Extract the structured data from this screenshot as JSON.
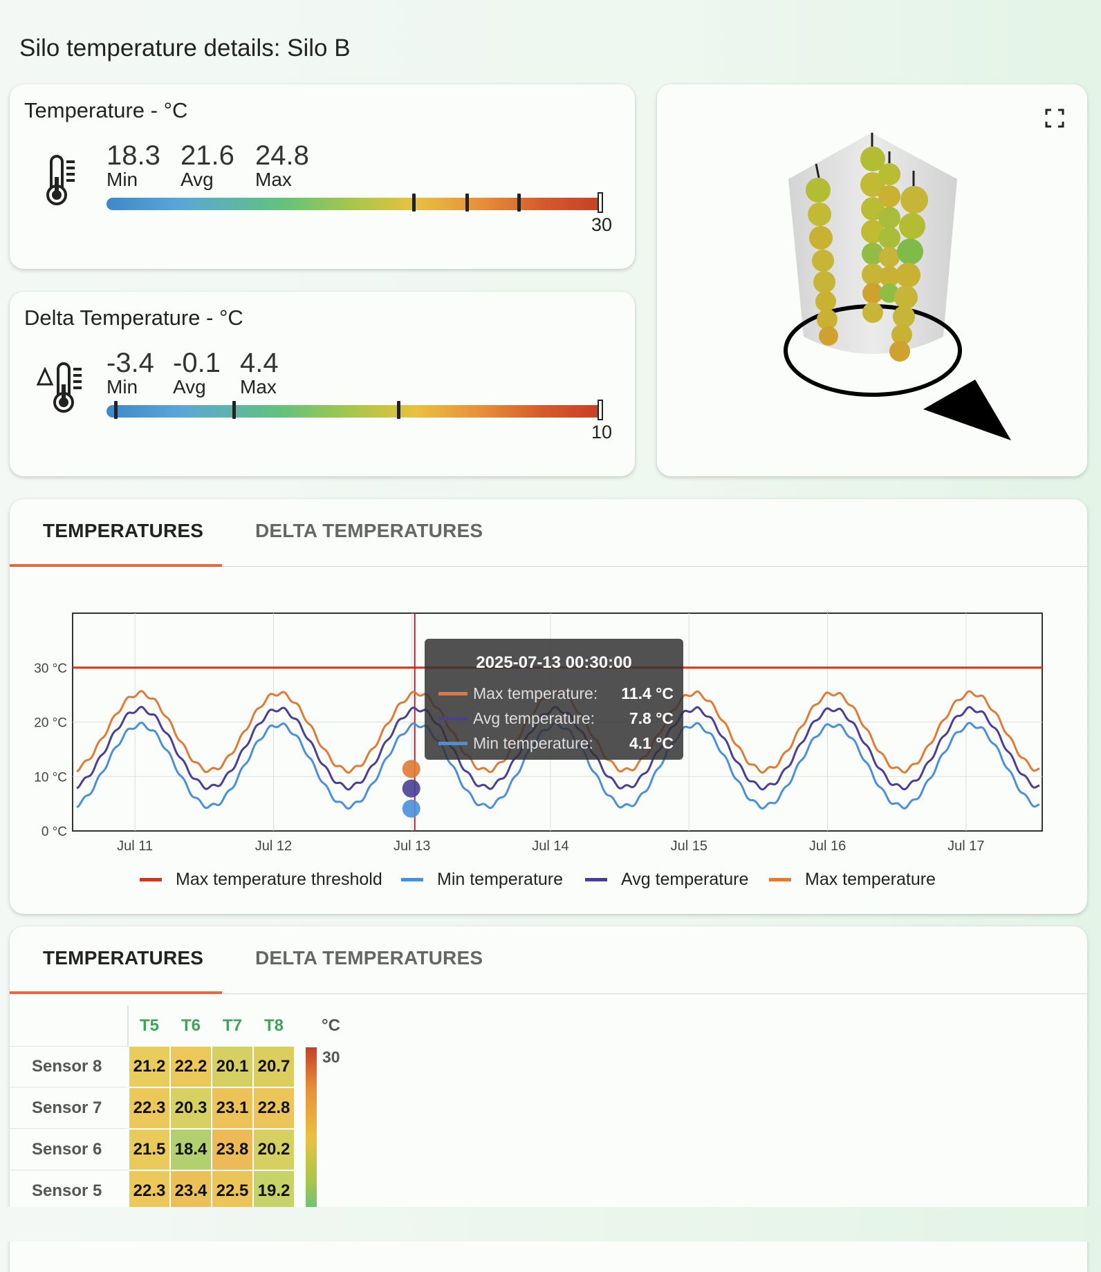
{
  "page": {
    "title": "Silo temperature details: Silo B"
  },
  "temperature_card": {
    "title": "Temperature - °C",
    "icon": "thermometer-icon",
    "min_value": "18.3",
    "min_label": "Min",
    "avg_value": "21.6",
    "avg_label": "Avg",
    "max_value": "24.8",
    "max_label": "Max",
    "scale_max": "30"
  },
  "delta_card": {
    "title": "Delta Temperature - °C",
    "icon": "delta-thermometer-icon",
    "min_value": "-3.4",
    "min_label": "Min",
    "avg_value": "-0.1",
    "avg_label": "Avg",
    "max_value": "4.4",
    "max_label": "Max",
    "scale_max": "10"
  },
  "silo_view": {
    "fullscreen_icon": "fullscreen-icon"
  },
  "chart_tabs": {
    "tab1": "TEMPERATURES",
    "tab2": "DELTA TEMPERATURES"
  },
  "table_tabs": {
    "tab1": "TEMPERATURES",
    "tab2": "DELTA TEMPERATURES"
  },
  "chart_data": {
    "type": "line",
    "x_ticks": [
      "Jul 11",
      "Jul 12",
      "Jul 13",
      "Jul 14",
      "Jul 15",
      "Jul 16",
      "Jul 17"
    ],
    "y_ticks": [
      "0 °C",
      "10 °C",
      "20 °C",
      "30 °C"
    ],
    "ylim": [
      0,
      40
    ],
    "threshold": 30,
    "series": [
      {
        "name": "Max temperature threshold",
        "color": "#c63b22"
      },
      {
        "name": "Min temperature",
        "color": "#4a90d9",
        "base": 12.0,
        "amp": 7.5
      },
      {
        "name": "Avg temperature",
        "color": "#4a3f96",
        "base": 15.2,
        "amp": 7.2
      },
      {
        "name": "Max temperature",
        "color": "#e07a35",
        "base": 18.2,
        "amp": 7.1
      }
    ],
    "tooltip": {
      "timestamp": "2025-07-13 00:30:00",
      "rows": [
        {
          "label": "Max temperature:",
          "value": "11.4 °C",
          "color": "#e07a35"
        },
        {
          "label": "Avg temperature:",
          "value": "7.8 °C",
          "color": "#4a3f96"
        },
        {
          "label": "Min temperature:",
          "value": "4.1 °C",
          "color": "#4a90d9"
        }
      ]
    },
    "grid": true,
    "legend_position": "bottom"
  },
  "heatmap": {
    "columns": [
      "T5",
      "T6",
      "T7",
      "T8"
    ],
    "unit": "°C",
    "scale_max": "30",
    "scale_min": "15",
    "rows": [
      {
        "label": "Sensor 8",
        "values": [
          "21.2",
          "22.2",
          "20.1",
          "20.7"
        ]
      },
      {
        "label": "Sensor 7",
        "values": [
          "22.3",
          "20.3",
          "23.1",
          "22.8"
        ]
      },
      {
        "label": "Sensor 6",
        "values": [
          "21.5",
          "18.4",
          "23.8",
          "20.2"
        ]
      },
      {
        "label": "Sensor 5",
        "values": [
          "22.3",
          "23.4",
          "22.5",
          "19.2"
        ]
      }
    ]
  }
}
